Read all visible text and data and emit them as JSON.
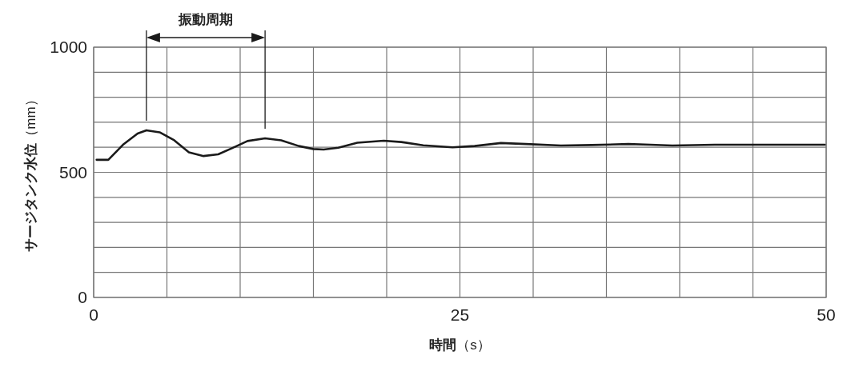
{
  "chart_data": {
    "type": "line",
    "xlabel": "**時間**（s）",
    "ylabel": "**サージタンク水位**（mm）",
    "annotations": [
      "振動周期"
    ],
    "x": [
      0.2,
      1.0,
      2.0,
      3.0,
      3.6,
      4.5,
      5.5,
      6.5,
      7.5,
      8.5,
      9.5,
      10.5,
      11.7,
      12.8,
      14.0,
      15.0,
      15.7,
      16.7,
      18.0,
      19.8,
      21.0,
      22.5,
      24.5,
      26.0,
      27.8,
      29.5,
      31.9,
      34.0,
      36.5,
      38.0,
      39.5,
      42.4,
      46.0,
      49.9
    ],
    "series": [
      {
        "color": "#1a1a1a",
        "values": [
          550,
          550,
          610,
          655,
          668,
          660,
          628,
          580,
          565,
          572,
          598,
          625,
          636,
          628,
          605,
          593,
          591,
          598,
          618,
          626,
          621,
          608,
          600,
          605,
          617,
          613,
          607,
          609,
          613,
          610,
          607,
          610,
          610,
          610
        ]
      }
    ],
    "xlim": [
      0,
      50
    ],
    "ylim": [
      0,
      1000
    ],
    "xticks": [
      0,
      {
        "value": 5,
        "label": null
      },
      {
        "value": 10,
        "label": null
      },
      {
        "value": 15,
        "label": null
      },
      {
        "value": 20,
        "label": null
      },
      25,
      {
        "value": 30,
        "label": null
      },
      {
        "value": 35,
        "label": null
      },
      {
        "value": 40,
        "label": null
      },
      {
        "value": 45,
        "label": null
      },
      50
    ],
    "yticks": [
      0,
      {
        "value": 100,
        "label": null
      },
      {
        "value": 200,
        "label": null
      },
      {
        "value": 300,
        "label": null
      },
      {
        "value": 400,
        "label": null
      },
      500,
      {
        "value": 600,
        "label": null
      },
      {
        "value": 700,
        "label": null
      },
      {
        "value": 800,
        "label": null
      },
      {
        "value": 900,
        "label": null
      },
      1000
    ],
    "grid": true,
    "marker": "none",
    "line_style": "solid"
  }
}
